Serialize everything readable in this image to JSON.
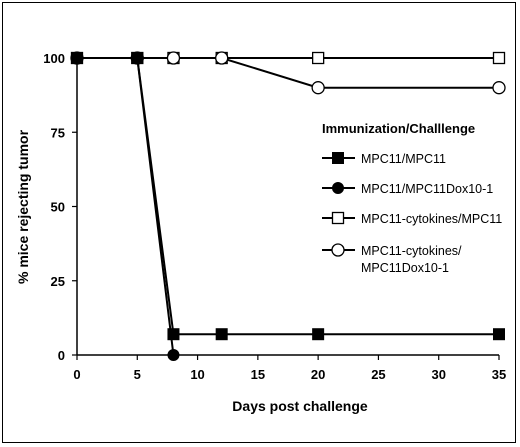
{
  "chart_data": {
    "type": "line",
    "xlabel": "Days post challenge",
    "ylabel": "% mice rejecting tumor",
    "xlim": [
      0,
      35
    ],
    "ylim": [
      0,
      100
    ],
    "xticks": [
      "0",
      "5",
      "10",
      "15",
      "20",
      "25",
      "30",
      "35"
    ],
    "yticks": [
      "0",
      "25",
      "50",
      "75",
      "100"
    ],
    "grid": false,
    "legend_title": "Immunization/Challlenge",
    "legend_position": "right",
    "series": [
      {
        "name": "MPC11/MPC11",
        "marker": "filled-square",
        "x": [
          0,
          5,
          8,
          12,
          20,
          35
        ],
        "y": [
          100,
          100,
          7,
          7,
          7,
          7
        ]
      },
      {
        "name": "MPC11/MPC11Dox10-1",
        "marker": "filled-circle",
        "x": [
          0,
          5,
          8
        ],
        "y": [
          100,
          100,
          0
        ]
      },
      {
        "name": "MPC11-cytokines/MPC11",
        "marker": "open-square",
        "x": [
          0,
          5,
          8,
          12,
          20,
          35
        ],
        "y": [
          100,
          100,
          100,
          100,
          100,
          100
        ]
      },
      {
        "name": "MPC11-cytokines/ MPC11Dox10-1",
        "name_lines": [
          "MPC11-cytokines/",
          "MPC11Dox10-1"
        ],
        "marker": "open-circle",
        "x": [
          0,
          5,
          8,
          12,
          20,
          35
        ],
        "y": [
          100,
          100,
          100,
          100,
          90,
          90
        ]
      }
    ]
  }
}
